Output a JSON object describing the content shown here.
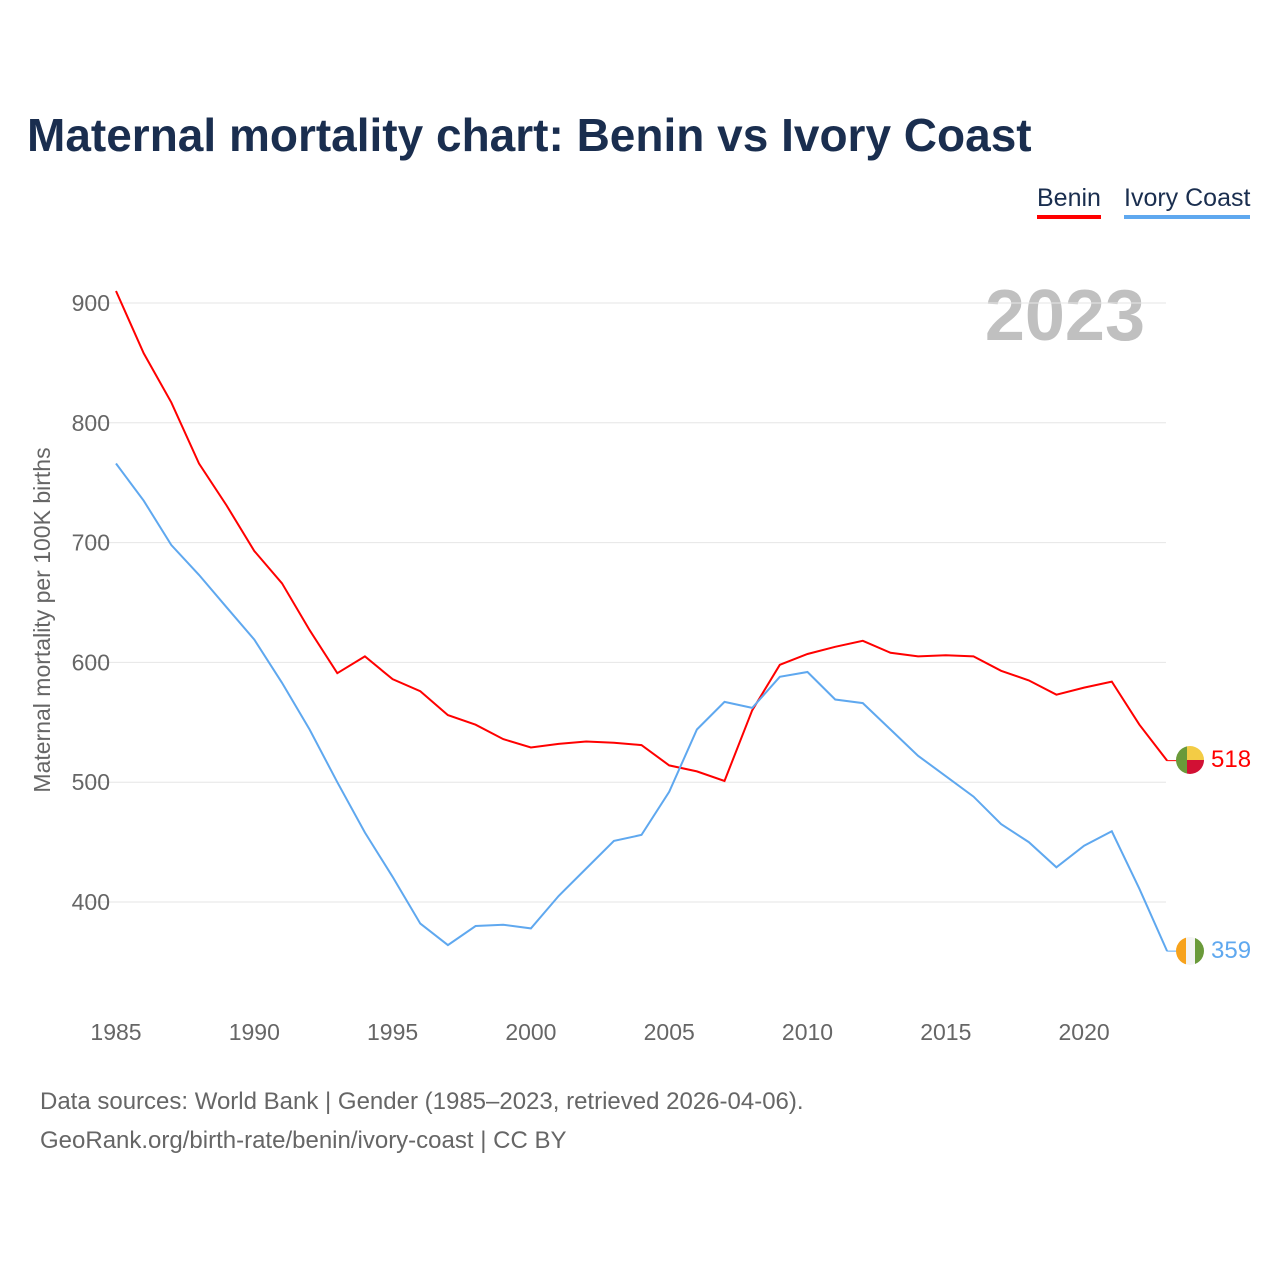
{
  "chart_data": {
    "type": "line",
    "title": "Maternal mortality chart: Benin vs Ivory Coast",
    "xlabel": "",
    "ylabel": "Maternal mortality per 100K births",
    "year_label": "2023",
    "xlim": [
      1985,
      2023
    ],
    "ylim": [
      330,
      920
    ],
    "x_ticks": [
      1985,
      1990,
      1995,
      2000,
      2005,
      2010,
      2015,
      2020
    ],
    "y_ticks": [
      400,
      500,
      600,
      700,
      800,
      900
    ],
    "grid": true,
    "legend_position": "top-right",
    "x": [
      1985,
      1986,
      1987,
      1988,
      1989,
      1990,
      1991,
      1992,
      1993,
      1994,
      1995,
      1996,
      1997,
      1998,
      1999,
      2000,
      2001,
      2002,
      2003,
      2004,
      2005,
      2006,
      2007,
      2008,
      2009,
      2010,
      2011,
      2012,
      2013,
      2014,
      2015,
      2016,
      2017,
      2018,
      2019,
      2020,
      2021,
      2022,
      2023
    ],
    "series": [
      {
        "name": "Benin",
        "color": "#ff0000",
        "end_label": "518",
        "values": [
          910,
          858,
          817,
          766,
          731,
          693,
          666,
          627,
          591,
          605,
          586,
          576,
          556,
          548,
          536,
          529,
          532,
          534,
          533,
          531,
          514,
          509,
          501,
          560,
          598,
          607,
          613,
          618,
          608,
          605,
          606,
          605,
          593,
          585,
          573,
          579,
          584,
          548,
          518
        ]
      },
      {
        "name": "Ivory Coast",
        "color": "#5fa8ef",
        "end_label": "359",
        "values": [
          766,
          735,
          698,
          673,
          646,
          619,
          583,
          544,
          500,
          458,
          421,
          382,
          364,
          380,
          381,
          378,
          405,
          428,
          451,
          456,
          492,
          544,
          567,
          562,
          588,
          592,
          569,
          566,
          544,
          522,
          505,
          488,
          465,
          450,
          429,
          447,
          459,
          411,
          359
        ]
      }
    ]
  },
  "footer": {
    "line1": "Data sources: World Bank | Gender (1985–2023, retrieved 2026-04-06).",
    "line2": "GeoRank.org/birth-rate/benin/ivory-coast | CC BY"
  }
}
